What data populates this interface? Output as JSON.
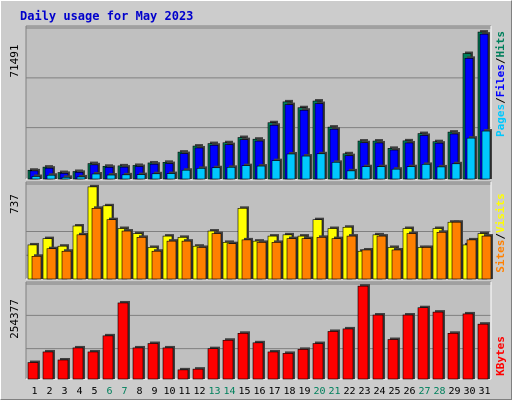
{
  "title": "Daily usage for May 2023",
  "colors": {
    "hits": "#00805c",
    "files": "#0000ff",
    "pages": "#00c8ff",
    "visits": "#ffff00",
    "sites": "#ff8000",
    "kbytes": "#ff0000",
    "weekend_label": "#00805c",
    "weekday_label": "#000000"
  },
  "weekend_days": [
    6,
    7,
    13,
    14,
    20,
    21,
    27,
    28
  ],
  "chart_data": [
    {
      "type": "bar",
      "panel": "top",
      "y_label": "71491",
      "legend": [
        "Pages",
        "/",
        "Files",
        "/",
        "Hits"
      ],
      "x": [
        1,
        2,
        3,
        4,
        5,
        6,
        7,
        8,
        9,
        10,
        11,
        12,
        13,
        14,
        15,
        16,
        17,
        18,
        19,
        20,
        21,
        22,
        23,
        24,
        25,
        26,
        27,
        28,
        29,
        30,
        31
      ],
      "ylim": [
        0,
        71491
      ],
      "series": [
        {
          "name": "Hits",
          "values": [
            4200,
            5700,
            3100,
            3600,
            7400,
            6100,
            6300,
            6500,
            7700,
            8000,
            12900,
            15800,
            17000,
            17400,
            19900,
            19100,
            27000,
            37000,
            34200,
            37400,
            24900,
            12100,
            18200,
            18200,
            14700,
            18300,
            21800,
            17900,
            22500,
            60200,
            70500
          ]
        },
        {
          "name": "Files",
          "values": [
            3900,
            5200,
            2700,
            3200,
            6800,
            5600,
            5700,
            6000,
            7100,
            7400,
            12200,
            14900,
            16200,
            16500,
            18900,
            18200,
            25800,
            35700,
            33000,
            36200,
            23900,
            11200,
            17400,
            17300,
            13900,
            17300,
            20900,
            17200,
            21600,
            57900,
            69500
          ]
        },
        {
          "name": "Pages",
          "values": [
            1200,
            1800,
            800,
            1000,
            2400,
            1900,
            2000,
            2100,
            2500,
            2600,
            4200,
            5100,
            5400,
            5600,
            6400,
            6200,
            8800,
            12000,
            11000,
            12100,
            8000,
            3900,
            5900,
            5900,
            4700,
            5900,
            7000,
            5800,
            7300,
            19600,
            23000
          ]
        }
      ]
    },
    {
      "type": "bar",
      "panel": "middle",
      "y_label": "737",
      "legend": [
        "Sites",
        "/",
        "Visits"
      ],
      "x": [
        1,
        2,
        3,
        4,
        5,
        6,
        7,
        8,
        9,
        10,
        11,
        12,
        13,
        14,
        15,
        16,
        17,
        18,
        19,
        20,
        21,
        22,
        23,
        24,
        25,
        26,
        27,
        28,
        29,
        30,
        31
      ],
      "ylim": [
        0,
        737
      ],
      "series": [
        {
          "name": "Visits",
          "values": [
            270,
            320,
            260,
            420,
            730,
            580,
            400,
            360,
            250,
            340,
            330,
            260,
            380,
            290,
            560,
            300,
            340,
            350,
            340,
            470,
            400,
            410,
            220,
            350,
            250,
            400,
            250,
            400,
            450,
            270,
            360
          ]
        },
        {
          "name": "Sites",
          "values": [
            180,
            240,
            220,
            350,
            560,
            470,
            380,
            330,
            220,
            300,
            300,
            250,
            360,
            280,
            310,
            290,
            290,
            320,
            320,
            330,
            320,
            340,
            230,
            340,
            230,
            360,
            250,
            370,
            450,
            310,
            340
          ]
        }
      ]
    },
    {
      "type": "bar",
      "panel": "bottom",
      "y_label": "254377",
      "legend": [
        "KBytes"
      ],
      "x": [
        1,
        2,
        3,
        4,
        5,
        6,
        7,
        8,
        9,
        10,
        11,
        12,
        13,
        14,
        15,
        16,
        17,
        18,
        19,
        20,
        21,
        22,
        23,
        24,
        25,
        26,
        27,
        28,
        29,
        30,
        31
      ],
      "ylim": [
        0,
        254377
      ],
      "series": [
        {
          "name": "KBytes",
          "values": [
            45000,
            74000,
            52000,
            85000,
            74000,
            118000,
            208000,
            85000,
            97000,
            85000,
            25000,
            27000,
            83000,
            106000,
            125000,
            99000,
            74000,
            70000,
            81000,
            97000,
            130000,
            137000,
            254000,
            175000,
            108000,
            175000,
            195000,
            183000,
            125000,
            178000,
            150000
          ]
        }
      ]
    }
  ]
}
